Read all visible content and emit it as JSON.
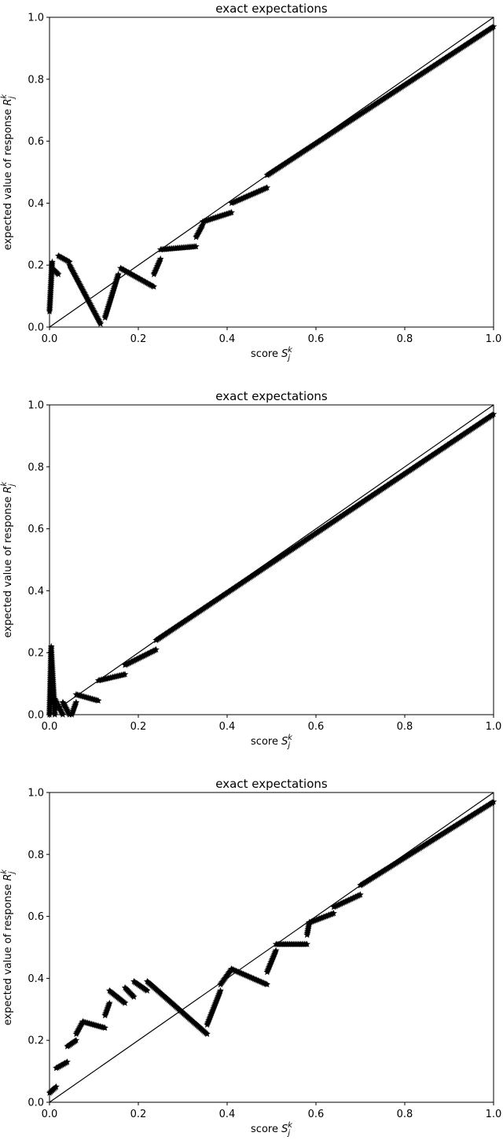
{
  "chart_data": [
    {
      "type": "scatter",
      "title": "exact expectations",
      "xlabel": "score S_j^k",
      "ylabel": "expected value of response R_j^k",
      "xlim": [
        0,
        1
      ],
      "ylim": [
        0,
        1
      ],
      "xticks": [
        "0.0",
        "0.2",
        "0.4",
        "0.6",
        "0.8",
        "1.0"
      ],
      "yticks": [
        "0.0",
        "0.2",
        "0.4",
        "0.6",
        "0.8",
        "1.0"
      ],
      "reference_line": [
        [
          0,
          0
        ],
        [
          1,
          1
        ]
      ],
      "marker": "star",
      "segments": [
        {
          "x": [
            0.0,
            0.006
          ],
          "y": [
            0.05,
            0.21
          ]
        },
        {
          "x": [
            0.006,
            0.02
          ],
          "y": [
            0.19,
            0.17
          ]
        },
        {
          "x": [
            0.02,
            0.045
          ],
          "y": [
            0.23,
            0.21
          ]
        },
        {
          "x": [
            0.045,
            0.115
          ],
          "y": [
            0.2,
            0.01
          ]
        },
        {
          "x": [
            0.125,
            0.155
          ],
          "y": [
            0.03,
            0.17
          ]
        },
        {
          "x": [
            0.16,
            0.235
          ],
          "y": [
            0.19,
            0.13
          ]
        },
        {
          "x": [
            0.235,
            0.25
          ],
          "y": [
            0.17,
            0.22
          ]
        },
        {
          "x": [
            0.25,
            0.33
          ],
          "y": [
            0.25,
            0.26
          ]
        },
        {
          "x": [
            0.33,
            0.345
          ],
          "y": [
            0.29,
            0.33
          ]
        },
        {
          "x": [
            0.345,
            0.41
          ],
          "y": [
            0.34,
            0.37
          ]
        },
        {
          "x": [
            0.41,
            0.49
          ],
          "y": [
            0.4,
            0.45
          ]
        },
        {
          "x": [
            0.49,
            1.0
          ],
          "y": [
            0.49,
            0.97
          ]
        }
      ]
    },
    {
      "type": "scatter",
      "title": "exact expectations",
      "xlabel": "score S_j^k",
      "ylabel": "expected value of response R_j^k",
      "xlim": [
        0,
        1
      ],
      "ylim": [
        0,
        1
      ],
      "xticks": [
        "0.0",
        "0.2",
        "0.4",
        "0.6",
        "0.8",
        "1.0"
      ],
      "yticks": [
        "0.0",
        "0.2",
        "0.4",
        "0.6",
        "0.8",
        "1.0"
      ],
      "reference_line": [
        [
          0,
          0
        ],
        [
          1,
          1
        ]
      ],
      "marker": "star",
      "segments": [
        {
          "x": [
            0.0,
            0.004
          ],
          "y": [
            0.0,
            0.22
          ]
        },
        {
          "x": [
            0.004,
            0.012
          ],
          "y": [
            0.2,
            0.0
          ]
        },
        {
          "x": [
            0.012,
            0.03
          ],
          "y": [
            0.05,
            0.0
          ]
        },
        {
          "x": [
            0.03,
            0.045
          ],
          "y": [
            0.04,
            0.0
          ]
        },
        {
          "x": [
            0.05,
            0.06
          ],
          "y": [
            0.0,
            0.04
          ]
        },
        {
          "x": [
            0.06,
            0.11
          ],
          "y": [
            0.065,
            0.045
          ]
        },
        {
          "x": [
            0.11,
            0.17
          ],
          "y": [
            0.11,
            0.13
          ]
        },
        {
          "x": [
            0.17,
            0.24
          ],
          "y": [
            0.16,
            0.21
          ]
        },
        {
          "x": [
            0.24,
            1.0
          ],
          "y": [
            0.24,
            0.97
          ]
        }
      ]
    },
    {
      "type": "scatter",
      "title": "exact expectations",
      "xlabel": "score S_j^k",
      "ylabel": "expected value of response R_j^k",
      "xlim": [
        0,
        1
      ],
      "ylim": [
        0,
        1
      ],
      "xticks": [
        "0.0",
        "0.2",
        "0.4",
        "0.6",
        "0.8",
        "1.0"
      ],
      "yticks": [
        "0.0",
        "0.2",
        "0.4",
        "0.6",
        "0.8",
        "1.0"
      ],
      "reference_line": [
        [
          0,
          0
        ],
        [
          1,
          1
        ]
      ],
      "marker": "star",
      "segments": [
        {
          "x": [
            0.0,
            0.015
          ],
          "y": [
            0.03,
            0.05
          ]
        },
        {
          "x": [
            0.015,
            0.04
          ],
          "y": [
            0.11,
            0.13
          ]
        },
        {
          "x": [
            0.04,
            0.06
          ],
          "y": [
            0.18,
            0.2
          ]
        },
        {
          "x": [
            0.06,
            0.075
          ],
          "y": [
            0.22,
            0.26
          ]
        },
        {
          "x": [
            0.075,
            0.125
          ],
          "y": [
            0.26,
            0.24
          ]
        },
        {
          "x": [
            0.125,
            0.135
          ],
          "y": [
            0.28,
            0.32
          ]
        },
        {
          "x": [
            0.135,
            0.17
          ],
          "y": [
            0.36,
            0.32
          ]
        },
        {
          "x": [
            0.17,
            0.19
          ],
          "y": [
            0.37,
            0.34
          ]
        },
        {
          "x": [
            0.19,
            0.22
          ],
          "y": [
            0.39,
            0.36
          ]
        },
        {
          "x": [
            0.22,
            0.355
          ],
          "y": [
            0.39,
            0.22
          ]
        },
        {
          "x": [
            0.355,
            0.385
          ],
          "y": [
            0.25,
            0.36
          ]
        },
        {
          "x": [
            0.385,
            0.41
          ],
          "y": [
            0.38,
            0.43
          ]
        },
        {
          "x": [
            0.41,
            0.49
          ],
          "y": [
            0.43,
            0.38
          ]
        },
        {
          "x": [
            0.49,
            0.51
          ],
          "y": [
            0.42,
            0.49
          ]
        },
        {
          "x": [
            0.51,
            0.58
          ],
          "y": [
            0.51,
            0.51
          ]
        },
        {
          "x": [
            0.58,
            0.585
          ],
          "y": [
            0.54,
            0.58
          ]
        },
        {
          "x": [
            0.585,
            0.64
          ],
          "y": [
            0.58,
            0.61
          ]
        },
        {
          "x": [
            0.64,
            0.7
          ],
          "y": [
            0.63,
            0.67
          ]
        },
        {
          "x": [
            0.7,
            1.0
          ],
          "y": [
            0.7,
            0.97
          ]
        }
      ]
    }
  ]
}
